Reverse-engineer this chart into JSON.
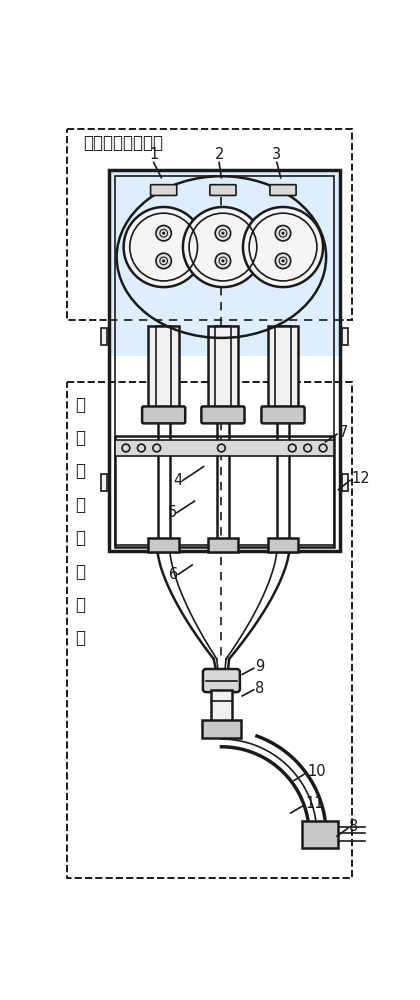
{
  "bg": "#ffffff",
  "lc": "#1a1a1a",
  "gc": "#c8c8c8",
  "gc2": "#d8d8d8",
  "light_blue": "#ddeeff",
  "label_elec": "电气连接改善单元",
  "label_mech": "机\n械\n应\n力\n改\n善\n单\n元",
  "tcx": [
    143,
    220,
    298
  ],
  "BL": 72,
  "BR": 372,
  "figw": 4.2,
  "figh": 10.0,
  "dpi": 100
}
